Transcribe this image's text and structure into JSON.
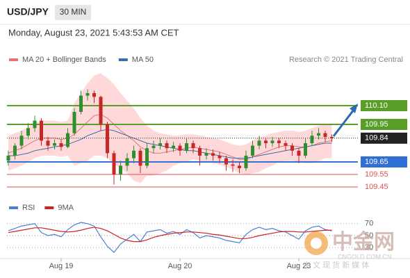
{
  "header": {
    "symbol": "USD/JPY",
    "interval": "30 MIN",
    "timestamp": "Monday, August 23, 2021 5:43:53 AM CET"
  },
  "chart_data": [
    {
      "type": "candlestick",
      "credit": "Research © 2021 Trading Central",
      "ylim": [
        109.35,
        110.45
      ],
      "up_color": "#2f8f2f",
      "down_color": "#c62828",
      "categories": [
        null,
        null,
        null,
        null,
        null,
        null,
        null,
        null,
        "Aug 19",
        null,
        null,
        null,
        null,
        null,
        null,
        null,
        null,
        null,
        null,
        null,
        null,
        null,
        null,
        null,
        null,
        null,
        "Aug 20",
        null,
        null,
        null,
        null,
        null,
        null,
        null,
        null,
        null,
        null,
        null,
        null,
        null,
        null,
        null,
        null,
        null,
        "Aug 23",
        null,
        null,
        null,
        null,
        null
      ],
      "candles": [
        [
          109.66,
          109.74,
          109.62,
          109.7
        ],
        [
          109.7,
          109.8,
          109.67,
          109.78
        ],
        [
          109.78,
          109.9,
          109.75,
          109.86
        ],
        [
          109.86,
          109.96,
          109.83,
          109.92
        ],
        [
          109.92,
          110.02,
          109.89,
          109.98
        ],
        [
          109.98,
          110.0,
          109.78,
          109.82
        ],
        [
          109.82,
          109.85,
          109.74,
          109.78
        ],
        [
          109.78,
          109.83,
          109.75,
          109.8
        ],
        [
          109.8,
          109.83,
          109.74,
          109.77
        ],
        [
          109.77,
          109.92,
          109.76,
          109.88
        ],
        [
          109.88,
          110.08,
          109.86,
          110.05
        ],
        [
          110.05,
          110.22,
          110.03,
          110.18
        ],
        [
          110.18,
          110.23,
          110.14,
          110.2
        ],
        [
          110.2,
          110.22,
          110.12,
          110.17
        ],
        [
          110.17,
          110.18,
          109.9,
          109.95
        ],
        [
          109.95,
          109.97,
          109.68,
          109.72
        ],
        [
          109.72,
          109.74,
          109.47,
          109.55
        ],
        [
          109.55,
          109.66,
          109.5,
          109.62
        ],
        [
          109.62,
          109.72,
          109.58,
          109.68
        ],
        [
          109.68,
          109.78,
          109.64,
          109.74
        ],
        [
          109.74,
          109.76,
          109.56,
          109.62
        ],
        [
          109.62,
          109.8,
          109.6,
          109.76
        ],
        [
          109.76,
          109.82,
          109.72,
          109.78
        ],
        [
          109.78,
          109.84,
          109.75,
          109.8
        ],
        [
          109.8,
          109.82,
          109.72,
          109.76
        ],
        [
          109.76,
          109.81,
          109.73,
          109.78
        ],
        [
          109.78,
          109.8,
          109.7,
          109.74
        ],
        [
          109.74,
          109.84,
          109.72,
          109.8
        ],
        [
          109.8,
          109.82,
          109.72,
          109.76
        ],
        [
          109.76,
          109.78,
          109.62,
          109.7
        ],
        [
          109.7,
          109.76,
          109.67,
          109.72
        ],
        [
          109.72,
          109.75,
          109.66,
          109.7
        ],
        [
          109.7,
          109.73,
          109.64,
          109.68
        ],
        [
          109.68,
          109.7,
          109.58,
          109.63
        ],
        [
          109.63,
          109.67,
          109.57,
          109.62
        ],
        [
          109.62,
          109.65,
          109.56,
          109.6
        ],
        [
          109.6,
          109.74,
          109.58,
          109.7
        ],
        [
          109.7,
          109.82,
          109.68,
          109.78
        ],
        [
          109.78,
          109.86,
          109.75,
          109.82
        ],
        [
          109.82,
          109.84,
          109.76,
          109.8
        ],
        [
          109.8,
          109.85,
          109.77,
          109.82
        ],
        [
          109.82,
          109.84,
          109.76,
          109.8
        ],
        [
          109.8,
          109.82,
          109.74,
          109.78
        ],
        [
          109.78,
          109.8,
          109.7,
          109.74
        ],
        [
          109.74,
          109.76,
          109.64,
          109.7
        ],
        [
          109.7,
          109.84,
          109.68,
          109.8
        ],
        [
          109.8,
          109.9,
          109.78,
          109.86
        ],
        [
          109.86,
          109.92,
          109.83,
          109.88
        ],
        [
          109.88,
          109.9,
          109.81,
          109.85
        ],
        [
          109.85,
          109.87,
          109.81,
          109.84
        ]
      ],
      "series": [
        {
          "name": "MA 20 + Bollinger Bands",
          "color": "#e57373",
          "band_color": "#ffd9d9",
          "values": [
            109.72,
            109.74,
            109.76,
            109.79,
            109.82,
            109.84,
            109.84,
            109.84,
            109.83,
            109.84,
            109.87,
            109.92,
            109.97,
            110.02,
            110.03,
            110.0,
            109.95,
            109.9,
            109.86,
            109.82,
            109.77,
            109.74,
            109.72,
            109.72,
            109.73,
            109.74,
            109.75,
            109.76,
            109.77,
            109.76,
            109.75,
            109.74,
            109.73,
            109.71,
            109.69,
            109.67,
            109.67,
            109.69,
            109.71,
            109.73,
            109.75,
            109.77,
            109.78,
            109.78,
            109.77,
            109.77,
            109.78,
            109.8,
            109.81,
            109.82
          ],
          "upper": [
            109.86,
            109.88,
            109.9,
            109.93,
            109.96,
            109.98,
            109.98,
            109.98,
            109.97,
            109.98,
            110.12,
            110.2,
            110.28,
            110.34,
            110.36,
            110.32,
            110.27,
            110.2,
            110.14,
            110.08,
            110.0,
            109.94,
            109.9,
            109.88,
            109.87,
            109.86,
            109.86,
            109.87,
            109.87,
            109.86,
            109.85,
            109.84,
            109.83,
            109.81,
            109.79,
            109.78,
            109.79,
            109.82,
            109.85,
            109.86,
            109.88,
            109.89,
            109.9,
            109.9,
            109.89,
            109.9,
            109.92,
            109.94,
            109.95,
            109.96
          ],
          "lower": [
            109.58,
            109.6,
            109.62,
            109.65,
            109.68,
            109.7,
            109.7,
            109.7,
            109.69,
            109.7,
            109.62,
            109.64,
            109.66,
            109.7,
            109.7,
            109.68,
            109.63,
            109.6,
            109.56,
            109.5,
            109.48,
            109.54,
            109.54,
            109.56,
            109.58,
            109.62,
            109.64,
            109.65,
            109.67,
            109.66,
            109.65,
            109.64,
            109.63,
            109.61,
            109.59,
            109.56,
            109.55,
            109.56,
            109.57,
            109.6,
            109.62,
            109.65,
            109.66,
            109.66,
            109.65,
            109.64,
            109.64,
            109.66,
            109.68,
            109.68
          ]
        },
        {
          "name": "MA 50",
          "color": "#3a6ea5",
          "values": [
            109.7,
            109.7,
            109.71,
            109.72,
            109.74,
            109.75,
            109.76,
            109.77,
            109.78,
            109.79,
            109.81,
            109.83,
            109.86,
            109.88,
            109.9,
            109.91,
            109.9,
            109.88,
            109.86,
            109.84,
            109.82,
            109.8,
            109.79,
            109.78,
            109.77,
            109.76,
            109.75,
            109.74,
            109.74,
            109.73,
            109.72,
            109.71,
            109.7,
            109.69,
            109.68,
            109.68,
            109.68,
            109.69,
            109.7,
            109.71,
            109.72,
            109.73,
            109.74,
            109.75,
            109.76,
            109.77,
            109.78,
            109.79,
            109.8,
            109.8
          ]
        }
      ],
      "levels": [
        {
          "value": 110.1,
          "label": "110.10",
          "color": "#5a9e2a",
          "style": "box"
        },
        {
          "value": 109.95,
          "label": "109.95",
          "color": "#5a9e2a",
          "style": "box"
        },
        {
          "value": 109.84,
          "color": "#222222",
          "style": "dotted"
        },
        {
          "value": 109.65,
          "color": "#2f6fd6",
          "style": "box"
        },
        {
          "value": 109.55,
          "color": "#d9534f",
          "style": "text"
        },
        {
          "value": 109.45,
          "color": "#d9534f",
          "style": "text"
        }
      ]
    },
    {
      "type": "line",
      "ylim": [
        14,
        86
      ],
      "yticks": [
        30,
        50,
        70
      ],
      "series": [
        {
          "name": "RSI",
          "color": "#4a7fd4",
          "values": [
            58,
            62,
            66,
            68,
            70,
            55,
            50,
            52,
            48,
            60,
            68,
            72,
            70,
            66,
            48,
            32,
            22,
            36,
            44,
            52,
            40,
            56,
            58,
            60,
            54,
            57,
            52,
            60,
            55,
            46,
            50,
            48,
            46,
            42,
            40,
            38,
            52,
            60,
            64,
            60,
            62,
            58,
            56,
            50,
            44,
            58,
            64,
            66,
            60,
            58
          ]
        },
        {
          "name": "9MA",
          "color": "#cc2222",
          "values": [
            55,
            57,
            59,
            61,
            63,
            63,
            61,
            59,
            57,
            56,
            57,
            59,
            62,
            64,
            62,
            58,
            52,
            46,
            42,
            40,
            40,
            43,
            47,
            50,
            52,
            54,
            55,
            56,
            56,
            55,
            54,
            52,
            51,
            49,
            47,
            45,
            45,
            47,
            50,
            52,
            54,
            56,
            57,
            57,
            56,
            56,
            57,
            58,
            59,
            59
          ]
        }
      ]
    }
  ],
  "watermark": {
    "title": "中金网",
    "site": "CNGOLD.COM.CN",
    "slogan": "中 文 现 货 新 媒 体"
  }
}
